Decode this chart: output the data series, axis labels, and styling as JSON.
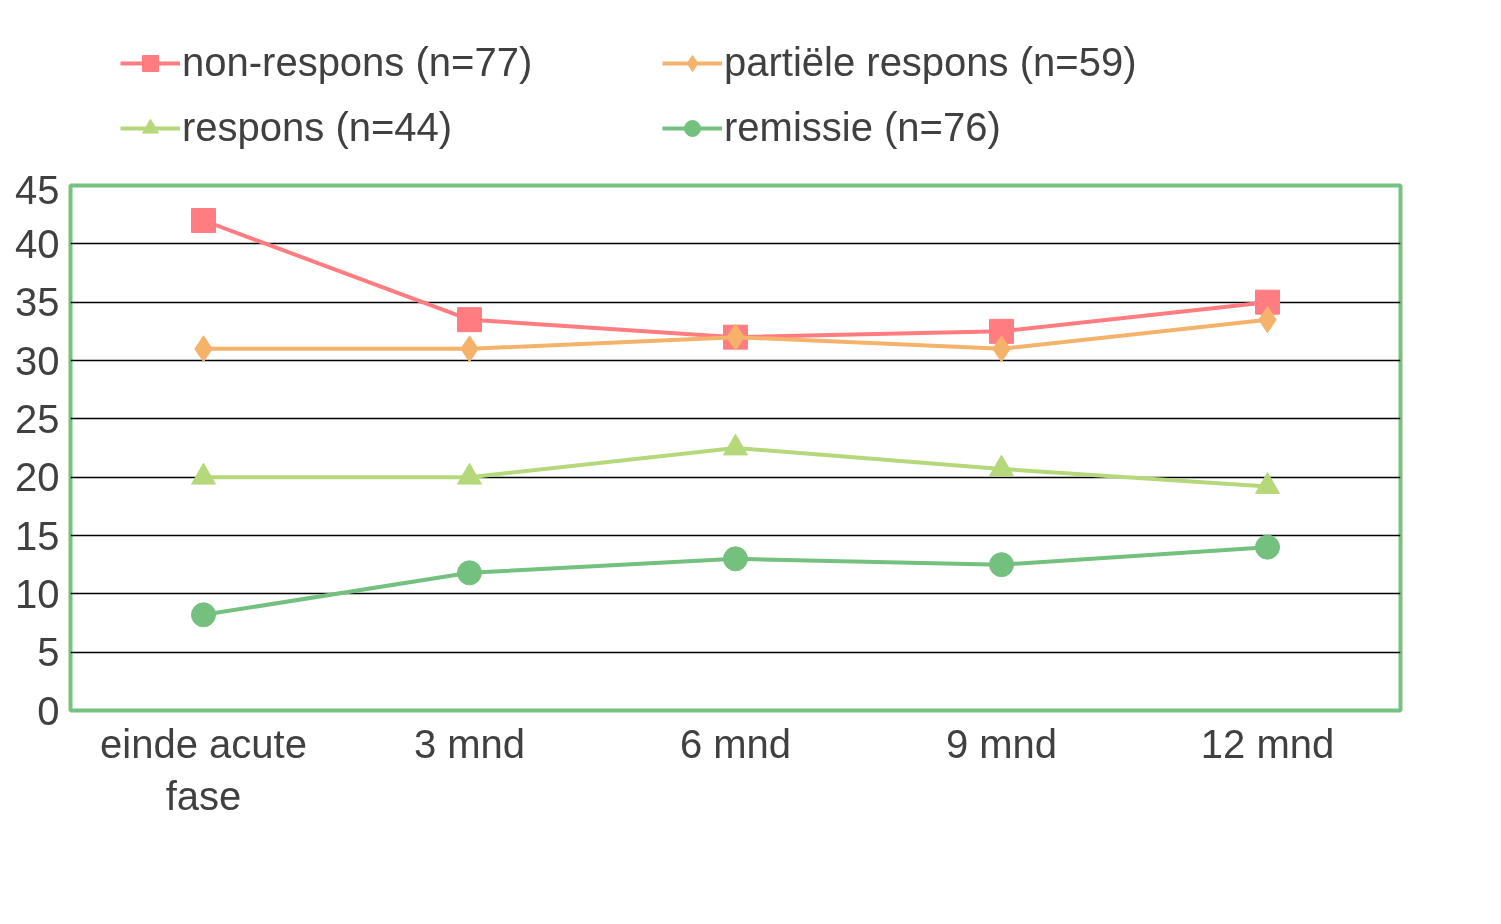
{
  "chart_data": {
    "type": "line",
    "categories": [
      "einde acute fase",
      "3 mnd",
      "6 mnd",
      "9 mnd",
      "12 mnd"
    ],
    "series": [
      {
        "name": "non-respons (n=77)",
        "color": "#ff7c80",
        "marker": "square",
        "values": [
          42,
          33.5,
          32,
          32.5,
          35
        ]
      },
      {
        "name": "partiële respons (n=59)",
        "color": "#f4b26b",
        "marker": "diamond",
        "values": [
          31,
          31,
          32,
          31,
          33.5
        ]
      },
      {
        "name": "respons (n=44)",
        "color": "#b5d97a",
        "marker": "triangle",
        "values": [
          20,
          20,
          22.5,
          20.7,
          19.2
        ]
      },
      {
        "name": "remissie (n=76)",
        "color": "#73c07f",
        "marker": "circle",
        "values": [
          8.2,
          11.8,
          13,
          12.5,
          14
        ]
      }
    ],
    "ylim": [
      0,
      45
    ],
    "yticks": [
      0,
      5,
      10,
      15,
      20,
      25,
      30,
      35,
      40,
      45
    ],
    "grid": "y",
    "legend": "top",
    "line_style": "solid"
  }
}
